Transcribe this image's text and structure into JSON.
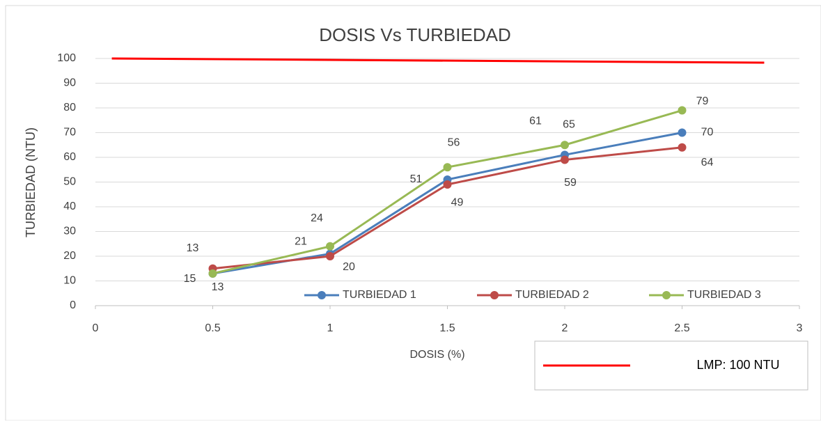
{
  "chart_data": {
    "type": "line",
    "title": "DOSIS Vs TURBIEDAD",
    "x_label": "DOSIS (%)",
    "y_label": "TURBIEDAD (NTU)",
    "x": [
      0.5,
      1,
      1.5,
      2,
      2.5
    ],
    "series": [
      {
        "name": "TURBIEDAD 1",
        "color": "#4a7ebb",
        "values": [
          13,
          21,
          51,
          61,
          70
        ]
      },
      {
        "name": "TURBIEDAD 2",
        "color": "#be4b48",
        "values": [
          15,
          20,
          49,
          59,
          64
        ]
      },
      {
        "name": "TURBIEDAD 3",
        "color": "#98b954",
        "values": [
          13,
          24,
          56,
          65,
          79
        ]
      }
    ],
    "reference_line": {
      "name": "LMP: 100 NTU",
      "color": "#ff0000",
      "x": [
        0.07,
        2.85
      ],
      "values": [
        100,
        98.3
      ]
    },
    "xlim": [
      0,
      3
    ],
    "xticks": [
      0,
      0.5,
      1,
      1.5,
      2,
      2.5,
      3
    ],
    "ylim": [
      0,
      100
    ],
    "yticks": [
      0,
      10,
      20,
      30,
      40,
      50,
      60,
      70,
      80,
      90,
      100
    ],
    "grid": true
  }
}
